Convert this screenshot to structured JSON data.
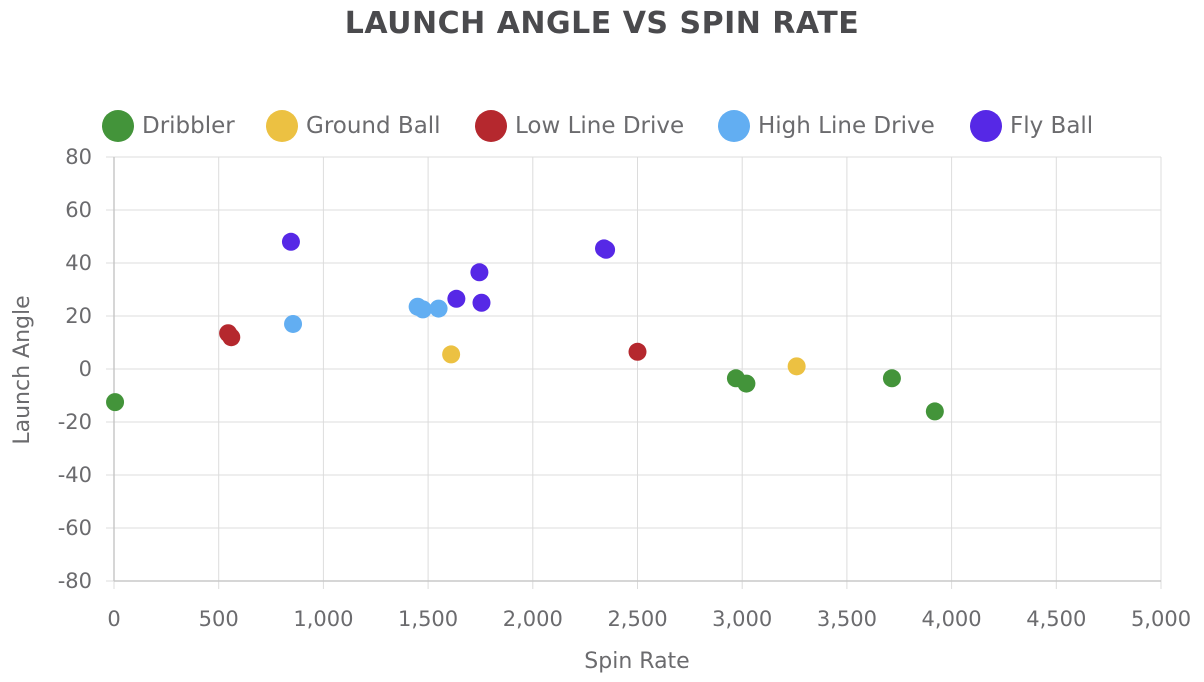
{
  "chart_data": {
    "type": "scatter",
    "title": "LAUNCH ANGLE VS SPIN RATE",
    "xlabel": "Spin Rate",
    "ylabel": "Launch Angle",
    "xlim": [
      0,
      5000
    ],
    "ylim": [
      -80,
      80
    ],
    "x_ticks": [
      "0",
      "500",
      "1,000",
      "1,500",
      "2,000",
      "2,500",
      "3,000",
      "3,500",
      "4,000",
      "4,500",
      "5,000"
    ],
    "y_ticks": [
      "80",
      "60",
      "40",
      "20",
      "0",
      "-20",
      "-40",
      "-60",
      "-80"
    ],
    "x_tick_values": [
      0,
      500,
      1000,
      1500,
      2000,
      2500,
      3000,
      3500,
      4000,
      4500,
      5000
    ],
    "y_tick_values": [
      80,
      60,
      40,
      20,
      0,
      -20,
      -40,
      -60,
      -80
    ],
    "grid": true,
    "legend_position": "top",
    "series": [
      {
        "name": "Dribbler",
        "color": "#43943a",
        "points": [
          {
            "x": 5,
            "y": -12.5
          },
          {
            "x": 2970,
            "y": -3.5
          },
          {
            "x": 3020,
            "y": -5.5
          },
          {
            "x": 3715,
            "y": -3.5
          },
          {
            "x": 3920,
            "y": -16
          }
        ]
      },
      {
        "name": "Ground Ball",
        "color": "#ecc142",
        "points": [
          {
            "x": 1610,
            "y": 5.5
          },
          {
            "x": 3260,
            "y": 1
          }
        ]
      },
      {
        "name": "Low Line Drive",
        "color": "#b5282e",
        "points": [
          {
            "x": 545,
            "y": 13.5
          },
          {
            "x": 560,
            "y": 12
          },
          {
            "x": 2500,
            "y": 6.5
          }
        ]
      },
      {
        "name": "High Line Drive",
        "color": "#62aef2",
        "points": [
          {
            "x": 855,
            "y": 17
          },
          {
            "x": 1450,
            "y": 23.5
          },
          {
            "x": 1475,
            "y": 22.5
          },
          {
            "x": 1550,
            "y": 22.8
          }
        ]
      },
      {
        "name": "Fly Ball",
        "color": "#5628e6",
        "points": [
          {
            "x": 845,
            "y": 48
          },
          {
            "x": 1635,
            "y": 26.5
          },
          {
            "x": 1745,
            "y": 36.5
          },
          {
            "x": 1755,
            "y": 25
          },
          {
            "x": 2340,
            "y": 45.5
          },
          {
            "x": 2350,
            "y": 45
          }
        ]
      }
    ]
  }
}
